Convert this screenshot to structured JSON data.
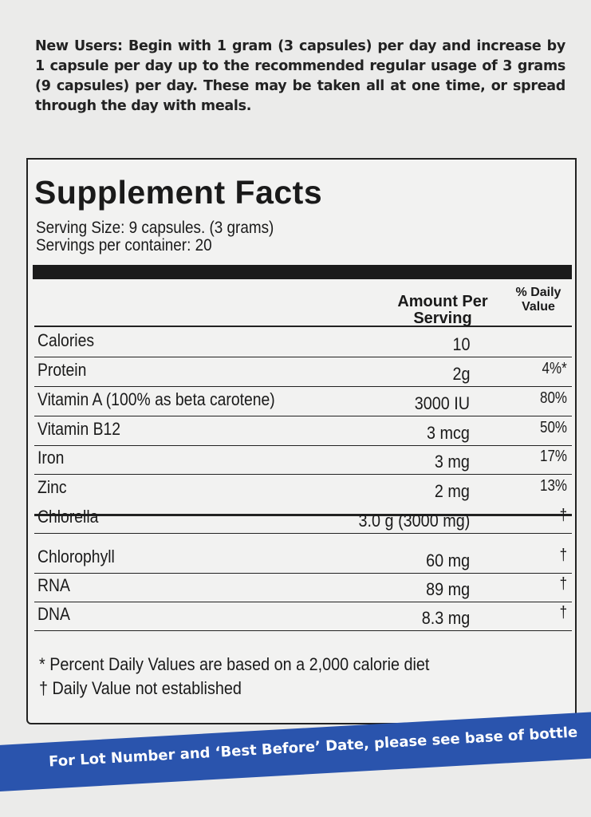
{
  "directions": "New Users: Begin with 1 gram (3 capsules) per day and increase by 1 capsule per day up to the recommended regular usage of 3 grams (9 capsules) per day. These may be taken all at one time, or spread through the day with meals.",
  "facts": {
    "title": "Supplement Facts",
    "serving_size": "Serving Size: 9 capsules. (3 grams)",
    "servings_per_container": "Servings per container: 20",
    "header_amount": "Amount Per Serving",
    "header_dv": "% Daily Value",
    "rows": [
      {
        "name": "Calories",
        "amount": "10",
        "dv": ""
      },
      {
        "name": "Protein",
        "amount": "2g",
        "dv": "4%*"
      },
      {
        "name": "Vitamin A (100% as beta carotene)",
        "amount": "3000 IU",
        "dv": "80%"
      },
      {
        "name": "Vitamin B12",
        "amount": "3 mcg",
        "dv": "50%"
      },
      {
        "name": "Iron",
        "amount": "3 mg",
        "dv": "17%"
      },
      {
        "name": "Zinc",
        "amount": "2 mg",
        "dv": "13%"
      },
      {
        "name": "Chlorella",
        "amount": "3.0 g (3000 mg)",
        "dv": "†"
      },
      {
        "name": "Chlorophyll",
        "amount": "60 mg",
        "dv": "†"
      },
      {
        "name": "RNA",
        "amount": "89 mg",
        "dv": "†"
      },
      {
        "name": "DNA",
        "amount": "8.3 mg",
        "dv": "†"
      }
    ],
    "footnote_1": "* Percent Daily Values are based on a 2,000 calorie diet",
    "footnote_2": "† Daily Value not established"
  },
  "band_text": "For Lot Number and ‘Best Before’ Date, please see base of bottle",
  "colors": {
    "band": "#2a54ad",
    "text": "#1a1a1a"
  }
}
